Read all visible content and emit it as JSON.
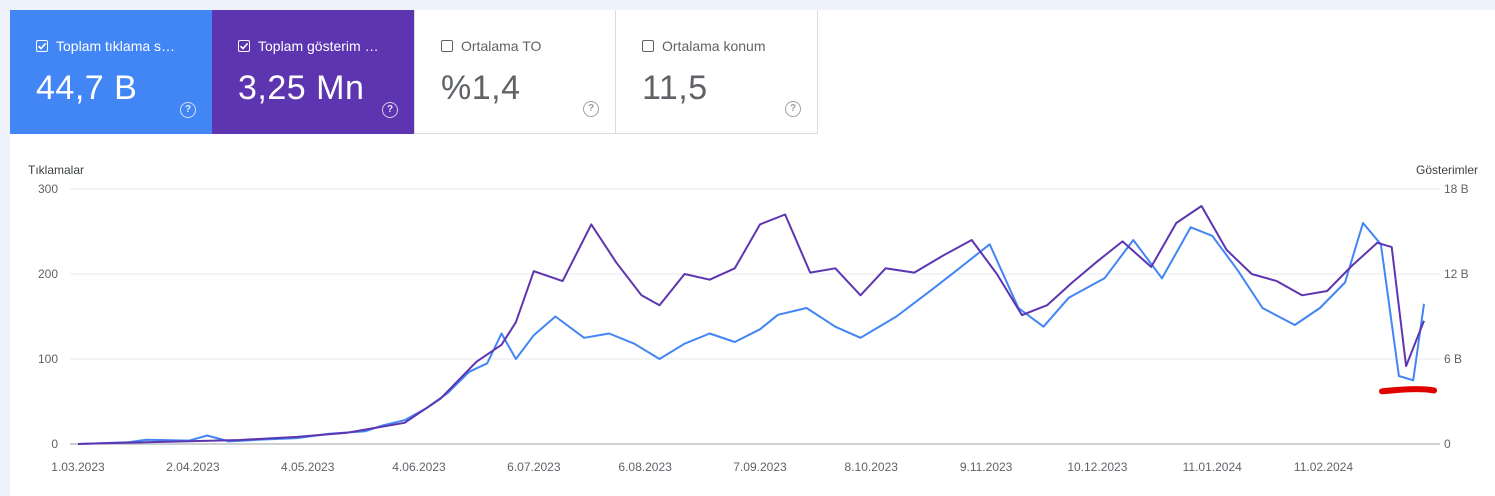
{
  "metrics": [
    {
      "label": "Toplam tıklama sayısı",
      "value": "44,7 B",
      "checked": true,
      "color": "#4285f4"
    },
    {
      "label": "Toplam gösterim sayısı",
      "value": "3,25 Mn",
      "checked": true,
      "color": "#5e35b1"
    },
    {
      "label": "Ortalama TO",
      "value": "%1,4",
      "checked": false
    },
    {
      "label": "Ortalama konum",
      "value": "11,5",
      "checked": false
    }
  ],
  "help_glyph": "?",
  "chart_data": {
    "type": "line",
    "ylabel_left": "Tıklamalar",
    "ylabel_right": "Gösterimler",
    "left_ticks": [
      "0",
      "100",
      "200",
      "300"
    ],
    "right_ticks": [
      "0",
      "6 B",
      "12 B",
      "18 B"
    ],
    "ylim_left": [
      0,
      300
    ],
    "ylim_right": [
      0,
      18000
    ],
    "x_tick_labels": [
      "1.03.2023",
      "2.04.2023",
      "4.05.2023",
      "4.06.2023",
      "6.07.2023",
      "6.08.2023",
      "7.09.2023",
      "8.10.2023",
      "9.11.2023",
      "10.12.2023",
      "11.01.2024",
      "11.02.2024"
    ],
    "grid": true,
    "annotation": "red marker stroke near the final dip",
    "series": [
      {
        "name": "Tıklamalar",
        "axis": "left",
        "color": "#4285f4",
        "points": [
          [
            "1.03.2023",
            0
          ],
          [
            "15.03.2023",
            2
          ],
          [
            "20.03.2023",
            5
          ],
          [
            "1.04.2023",
            4
          ],
          [
            "6.04.2023",
            10
          ],
          [
            "12.04.2023",
            3
          ],
          [
            "20.04.2023",
            5
          ],
          [
            "1.05.2023",
            7
          ],
          [
            "10.05.2023",
            12
          ],
          [
            "20.05.2023",
            15
          ],
          [
            "25.05.2023",
            22
          ],
          [
            "31.05.2023",
            28
          ],
          [
            "6.06.2023",
            42
          ],
          [
            "12.06.2023",
            60
          ],
          [
            "18.06.2023",
            85
          ],
          [
            "23.06.2023",
            95
          ],
          [
            "27.06.2023",
            130
          ],
          [
            "1.07.2023",
            100
          ],
          [
            "6.07.2023",
            128
          ],
          [
            "12.07.2023",
            150
          ],
          [
            "20.07.2023",
            125
          ],
          [
            "27.07.2023",
            130
          ],
          [
            "3.08.2023",
            118
          ],
          [
            "10.08.2023",
            100
          ],
          [
            "17.08.2023",
            118
          ],
          [
            "24.08.2023",
            130
          ],
          [
            "31.08.2023",
            120
          ],
          [
            "7.09.2023",
            135
          ],
          [
            "12.09.2023",
            152
          ],
          [
            "20.09.2023",
            160
          ],
          [
            "28.09.2023",
            138
          ],
          [
            "5.10.2023",
            125
          ],
          [
            "15.10.2023",
            150
          ],
          [
            "25.10.2023",
            182
          ],
          [
            "1.11.2023",
            205
          ],
          [
            "10.11.2023",
            235
          ],
          [
            "18.11.2023",
            160
          ],
          [
            "25.11.2023",
            138
          ],
          [
            "2.12.2023",
            172
          ],
          [
            "12.12.2023",
            195
          ],
          [
            "20.12.2023",
            240
          ],
          [
            "28.12.2023",
            195
          ],
          [
            "5.01.2024",
            255
          ],
          [
            "11.01.2024",
            245
          ],
          [
            "18.01.2024",
            205
          ],
          [
            "25.01.2024",
            160
          ],
          [
            "3.02.2024",
            140
          ],
          [
            "10.02.2024",
            160
          ],
          [
            "17.02.2024",
            190
          ],
          [
            "22.02.2024",
            260
          ],
          [
            "27.02.2024",
            235
          ],
          [
            "3.03.2024",
            80
          ],
          [
            "7.03.2024",
            75
          ],
          [
            "10.03.2024",
            165
          ]
        ]
      },
      {
        "name": "Gösterimler",
        "axis": "right",
        "color": "#5e35b1",
        "points": [
          [
            "1.03.2023",
            0
          ],
          [
            "15.03.2023",
            100
          ],
          [
            "1.04.2023",
            200
          ],
          [
            "15.04.2023",
            280
          ],
          [
            "1.05.2023",
            500
          ],
          [
            "15.05.2023",
            800
          ],
          [
            "31.05.2023",
            1500
          ],
          [
            "10.06.2023",
            3200
          ],
          [
            "20.06.2023",
            5800
          ],
          [
            "27.06.2023",
            7000
          ],
          [
            "1.07.2023",
            8600
          ],
          [
            "6.07.2023",
            12200
          ],
          [
            "14.07.2023",
            11500
          ],
          [
            "22.07.2023",
            15500
          ],
          [
            "29.07.2023",
            12800
          ],
          [
            "5.08.2023",
            10500
          ],
          [
            "10.08.2023",
            9800
          ],
          [
            "17.08.2023",
            12000
          ],
          [
            "24.08.2023",
            11600
          ],
          [
            "31.08.2023",
            12400
          ],
          [
            "7.09.2023",
            15500
          ],
          [
            "14.09.2023",
            16200
          ],
          [
            "21.09.2023",
            12100
          ],
          [
            "28.09.2023",
            12400
          ],
          [
            "5.10.2023",
            10500
          ],
          [
            "12.10.2023",
            12400
          ],
          [
            "20.10.2023",
            12100
          ],
          [
            "28.10.2023",
            13300
          ],
          [
            "5.11.2023",
            14400
          ],
          [
            "12.11.2023",
            12000
          ],
          [
            "19.11.2023",
            9100
          ],
          [
            "26.11.2023",
            9800
          ],
          [
            "3.12.2023",
            11400
          ],
          [
            "10.12.2023",
            12900
          ],
          [
            "17.12.2023",
            14300
          ],
          [
            "25.12.2023",
            12500
          ],
          [
            "1.01.2024",
            15600
          ],
          [
            "8.01.2024",
            16800
          ],
          [
            "15.01.2024",
            13700
          ],
          [
            "22.01.2024",
            12000
          ],
          [
            "29.01.2024",
            11500
          ],
          [
            "5.02.2024",
            10500
          ],
          [
            "12.02.2024",
            10800
          ],
          [
            "19.02.2024",
            12600
          ],
          [
            "26.02.2024",
            14200
          ],
          [
            "1.03.2024",
            13900
          ],
          [
            "5.03.2024",
            5500
          ],
          [
            "10.03.2024",
            8700
          ]
        ]
      }
    ]
  }
}
